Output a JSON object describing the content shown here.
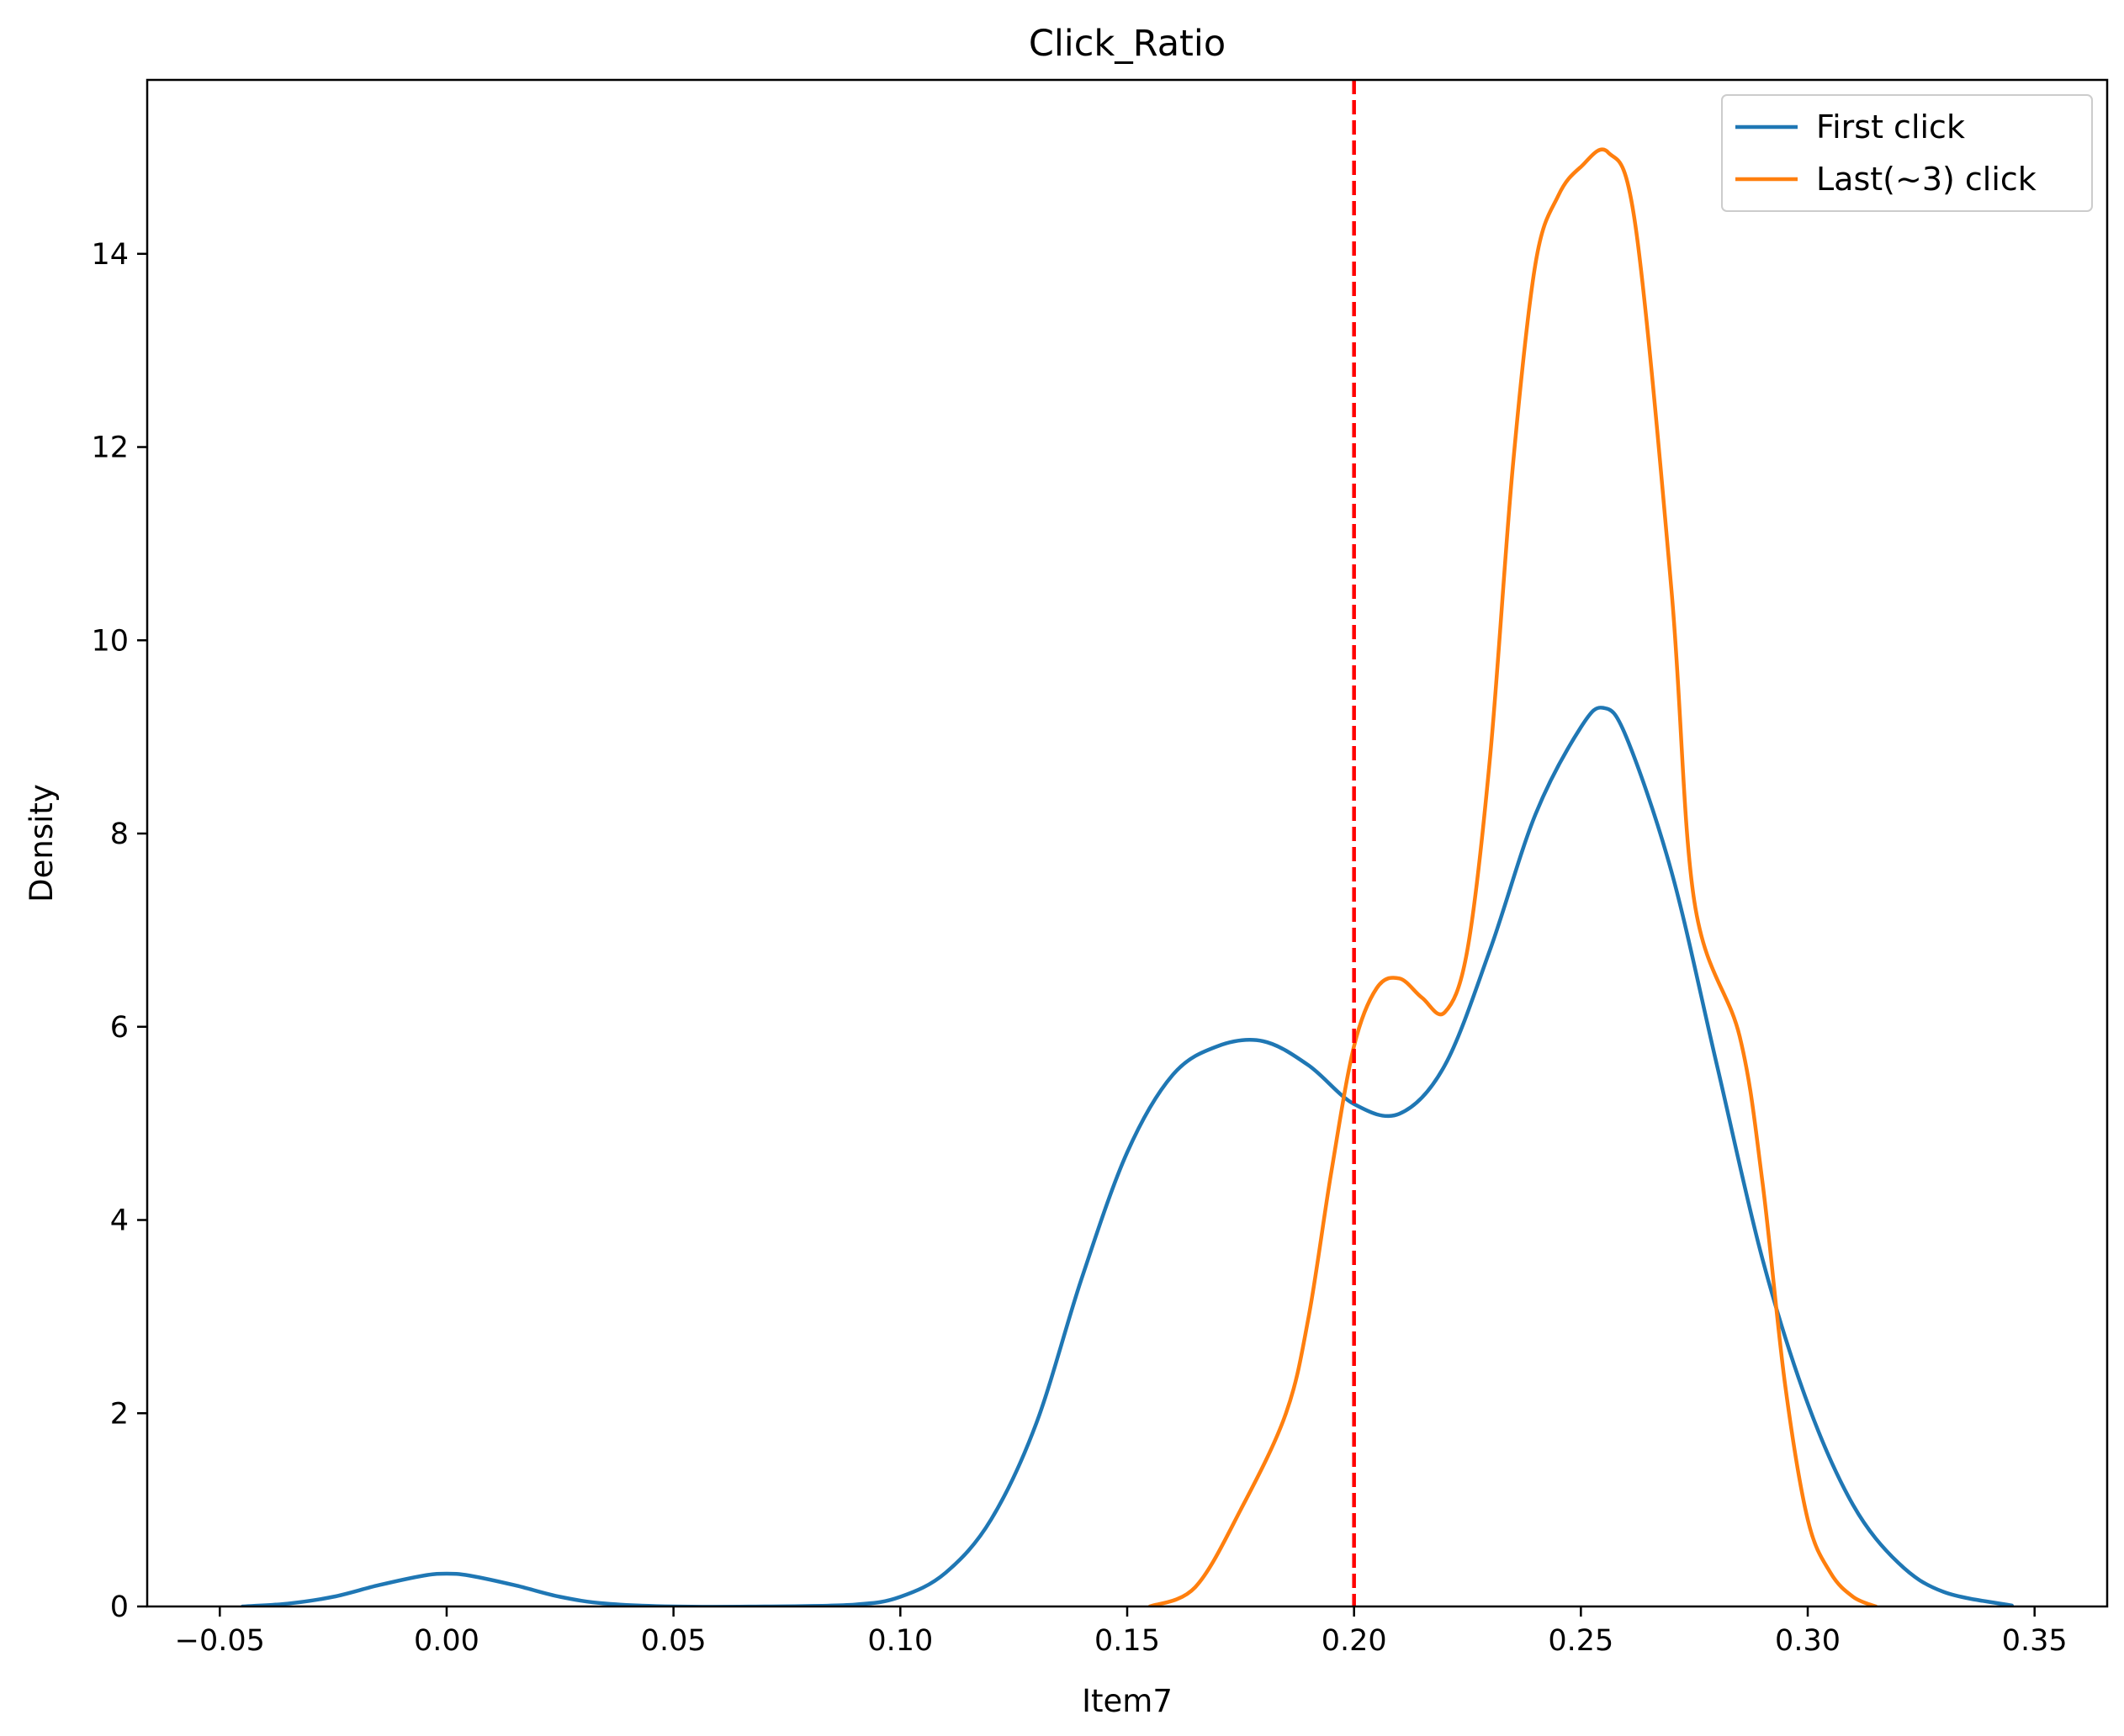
{
  "chart_data": {
    "type": "line",
    "title": "Click_Ratio",
    "xlabel": "Item7",
    "ylabel": "Density",
    "xlim": [
      -0.066,
      0.366
    ],
    "ylim": [
      0,
      15.8
    ],
    "xticks": [
      -0.05,
      0.0,
      0.05,
      0.1,
      0.15,
      0.2,
      0.25,
      0.3,
      0.35
    ],
    "xtick_labels": [
      "−0.05",
      "0.00",
      "0.05",
      "0.10",
      "0.15",
      "0.20",
      "0.25",
      "0.30",
      "0.35"
    ],
    "yticks": [
      0,
      2,
      4,
      6,
      8,
      10,
      12,
      14
    ],
    "ytick_labels": [
      "0",
      "2",
      "4",
      "6",
      "8",
      "10",
      "12",
      "14"
    ],
    "grid": false,
    "legend_position": "top-right",
    "series": [
      {
        "name": "First click",
        "color": "#1f77b4",
        "x": [
          -0.045,
          -0.035,
          -0.025,
          -0.015,
          -0.005,
          0.0,
          0.005,
          0.015,
          0.025,
          0.035,
          0.05,
          0.07,
          0.09,
          0.1,
          0.11,
          0.12,
          0.13,
          0.14,
          0.15,
          0.16,
          0.17,
          0.18,
          0.19,
          0.2,
          0.21,
          0.22,
          0.23,
          0.24,
          0.25,
          0.255,
          0.26,
          0.27,
          0.28,
          0.29,
          0.3,
          0.31,
          0.32,
          0.33,
          0.345
        ],
        "y": [
          0.0,
          0.03,
          0.1,
          0.22,
          0.32,
          0.34,
          0.32,
          0.22,
          0.1,
          0.03,
          0.0,
          0.0,
          0.02,
          0.1,
          0.35,
          0.9,
          1.9,
          3.4,
          4.7,
          5.5,
          5.8,
          5.85,
          5.6,
          5.2,
          5.1,
          5.6,
          6.8,
          8.2,
          9.1,
          9.3,
          9.0,
          7.6,
          5.6,
          3.6,
          2.1,
          1.05,
          0.45,
          0.15,
          0.01
        ]
      },
      {
        "name": "Last(~3) click",
        "color": "#ff7f0e",
        "x": [
          0.155,
          0.165,
          0.175,
          0.185,
          0.19,
          0.195,
          0.2,
          0.205,
          0.21,
          0.215,
          0.22,
          0.225,
          0.23,
          0.235,
          0.24,
          0.245,
          0.25,
          0.256,
          0.262,
          0.27,
          0.275,
          0.285,
          0.29,
          0.295,
          0.3,
          0.305,
          0.31,
          0.315
        ],
        "y": [
          0.0,
          0.2,
          1.0,
          2.0,
          3.0,
          4.5,
          5.8,
          6.4,
          6.5,
          6.3,
          6.15,
          6.8,
          8.8,
          11.8,
          13.9,
          14.6,
          14.9,
          15.05,
          14.3,
          10.5,
          7.3,
          5.9,
          4.4,
          2.3,
          0.9,
          0.35,
          0.1,
          0.0
        ]
      }
    ],
    "annotations": [
      {
        "type": "vline",
        "x": 0.2,
        "color": "#ff0000",
        "style": "dashed"
      }
    ]
  }
}
